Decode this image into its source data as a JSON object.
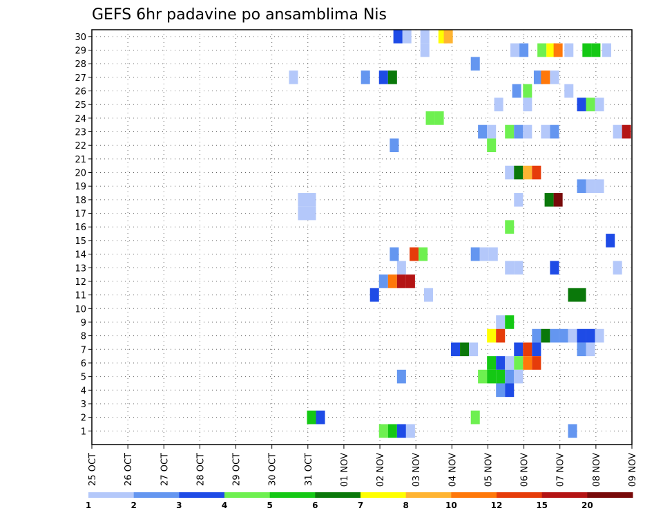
{
  "chart_data": {
    "type": "heatmap",
    "title": "GEFS 6hr padavine po ansamblima Nis",
    "x_tick_labels": [
      "25 OCT",
      "26 OCT",
      "27 OCT",
      "28 OCT",
      "29 OCT",
      "30 OCT",
      "31 OCT",
      "01 NOV",
      "02 NOV",
      "03 NOV",
      "04 NOV",
      "05 NOV",
      "06 NOV",
      "07 NOV",
      "08 NOV",
      "09 NOV"
    ],
    "y_tick_labels": [
      "1",
      "2",
      "3",
      "4",
      "5",
      "6",
      "7",
      "8",
      "9",
      "10",
      "11",
      "12",
      "13",
      "14",
      "15",
      "16",
      "17",
      "18",
      "19",
      "20",
      "21",
      "22",
      "23",
      "24",
      "25",
      "26",
      "27",
      "28",
      "29",
      "30"
    ],
    "grid": true,
    "legend": "bottom",
    "colorbar": {
      "labels": [
        "1",
        "2",
        "3",
        "4",
        "5",
        "6",
        "7",
        "8",
        "10",
        "12",
        "15",
        "20"
      ],
      "colors": [
        "#b4c8fa",
        "#6496f0",
        "#1e4be6",
        "#6ef050",
        "#14c814",
        "#0a780a",
        "#ffff00",
        "#ffb432",
        "#ff780a",
        "#e63c0a",
        "#b41414",
        "#780a0a"
      ]
    },
    "cells_legend": "each cell: [day offset from 25 OCT 00z, ensemble member, color-class index 0-11]",
    "cells": [
      [
        8.75,
        30,
        0
      ],
      [
        8.5,
        30,
        2
      ],
      [
        9.25,
        29,
        0
      ],
      [
        9.25,
        30,
        0
      ],
      [
        9.75,
        30,
        6
      ],
      [
        9.9,
        30,
        7
      ],
      [
        11.75,
        29,
        0
      ],
      [
        12.0,
        29,
        1
      ],
      [
        12.5,
        29,
        3
      ],
      [
        12.75,
        29,
        6
      ],
      [
        12.95,
        29,
        8
      ],
      [
        13.25,
        29,
        0
      ],
      [
        13.75,
        29,
        4
      ],
      [
        14.0,
        29,
        4
      ],
      [
        14.3,
        29,
        0
      ],
      [
        10.65,
        28,
        1
      ],
      [
        5.6,
        27,
        0
      ],
      [
        7.6,
        27,
        1
      ],
      [
        8.1,
        27,
        2
      ],
      [
        8.35,
        27,
        5
      ],
      [
        12.4,
        27,
        1
      ],
      [
        12.6,
        27,
        8
      ],
      [
        12.85,
        27,
        0
      ],
      [
        11.8,
        26,
        1
      ],
      [
        12.1,
        26,
        3
      ],
      [
        13.25,
        26,
        0
      ],
      [
        11.3,
        25,
        0
      ],
      [
        12.1,
        25,
        0
      ],
      [
        13.6,
        25,
        2
      ],
      [
        13.85,
        25,
        3
      ],
      [
        14.1,
        25,
        0
      ],
      [
        9.4,
        24,
        3
      ],
      [
        9.65,
        24,
        3
      ],
      [
        10.85,
        23,
        1
      ],
      [
        11.1,
        23,
        0
      ],
      [
        11.6,
        23,
        3
      ],
      [
        11.85,
        23,
        1
      ],
      [
        12.1,
        23,
        0
      ],
      [
        12.6,
        23,
        0
      ],
      [
        12.85,
        23,
        1
      ],
      [
        14.6,
        23,
        0
      ],
      [
        14.85,
        23,
        10
      ],
      [
        8.4,
        22,
        1
      ],
      [
        11.1,
        22,
        3
      ],
      [
        11.6,
        20,
        0
      ],
      [
        11.85,
        20,
        5
      ],
      [
        12.1,
        20,
        7
      ],
      [
        12.35,
        20,
        9
      ],
      [
        13.6,
        19,
        1
      ],
      [
        13.85,
        19,
        0
      ],
      [
        14.1,
        19,
        0
      ],
      [
        5.85,
        18,
        0
      ],
      [
        6.1,
        18,
        0
      ],
      [
        11.85,
        18,
        0
      ],
      [
        12.7,
        18,
        5
      ],
      [
        12.95,
        18,
        11
      ],
      [
        5.85,
        17,
        0
      ],
      [
        6.1,
        17,
        0
      ],
      [
        11.6,
        16,
        3
      ],
      [
        14.4,
        15,
        2
      ],
      [
        8.4,
        14,
        1
      ],
      [
        8.95,
        14,
        9
      ],
      [
        9.2,
        14,
        3
      ],
      [
        10.65,
        14,
        1
      ],
      [
        10.9,
        14,
        0
      ],
      [
        11.15,
        14,
        0
      ],
      [
        8.6,
        13,
        0
      ],
      [
        11.6,
        13,
        0
      ],
      [
        11.85,
        13,
        0
      ],
      [
        12.85,
        13,
        2
      ],
      [
        14.6,
        13,
        0
      ],
      [
        8.1,
        12,
        1
      ],
      [
        8.35,
        12,
        8
      ],
      [
        8.6,
        12,
        10
      ],
      [
        8.85,
        12,
        10
      ],
      [
        7.85,
        11,
        2
      ],
      [
        9.35,
        11,
        0
      ],
      [
        13.35,
        11,
        5
      ],
      [
        13.6,
        11,
        5
      ],
      [
        11.35,
        9,
        0
      ],
      [
        11.6,
        9,
        4
      ],
      [
        11.1,
        8,
        6
      ],
      [
        11.35,
        8,
        9
      ],
      [
        12.35,
        8,
        1
      ],
      [
        12.6,
        8,
        5
      ],
      [
        12.85,
        8,
        1
      ],
      [
        13.1,
        8,
        1
      ],
      [
        13.35,
        8,
        0
      ],
      [
        13.6,
        8,
        2
      ],
      [
        13.85,
        8,
        2
      ],
      [
        14.1,
        8,
        0
      ],
      [
        10.1,
        7,
        2
      ],
      [
        10.35,
        7,
        5
      ],
      [
        10.6,
        7,
        0
      ],
      [
        11.85,
        7,
        2
      ],
      [
        12.1,
        7,
        9
      ],
      [
        12.35,
        7,
        2
      ],
      [
        13.6,
        7,
        1
      ],
      [
        13.85,
        7,
        0
      ],
      [
        11.1,
        6,
        4
      ],
      [
        11.35,
        6,
        2
      ],
      [
        11.6,
        6,
        0
      ],
      [
        11.85,
        6,
        3
      ],
      [
        12.1,
        6,
        8
      ],
      [
        12.35,
        6,
        9
      ],
      [
        8.6,
        5,
        1
      ],
      [
        10.85,
        5,
        3
      ],
      [
        11.1,
        5,
        4
      ],
      [
        11.35,
        5,
        4
      ],
      [
        11.6,
        5,
        1
      ],
      [
        11.85,
        5,
        0
      ],
      [
        11.35,
        4,
        1
      ],
      [
        11.6,
        4,
        2
      ],
      [
        6.1,
        2,
        4
      ],
      [
        6.35,
        2,
        2
      ],
      [
        10.65,
        2,
        3
      ],
      [
        8.1,
        1,
        3
      ],
      [
        8.35,
        1,
        4
      ],
      [
        8.6,
        1,
        2
      ],
      [
        8.85,
        1,
        0
      ],
      [
        13.35,
        1,
        1
      ]
    ]
  }
}
